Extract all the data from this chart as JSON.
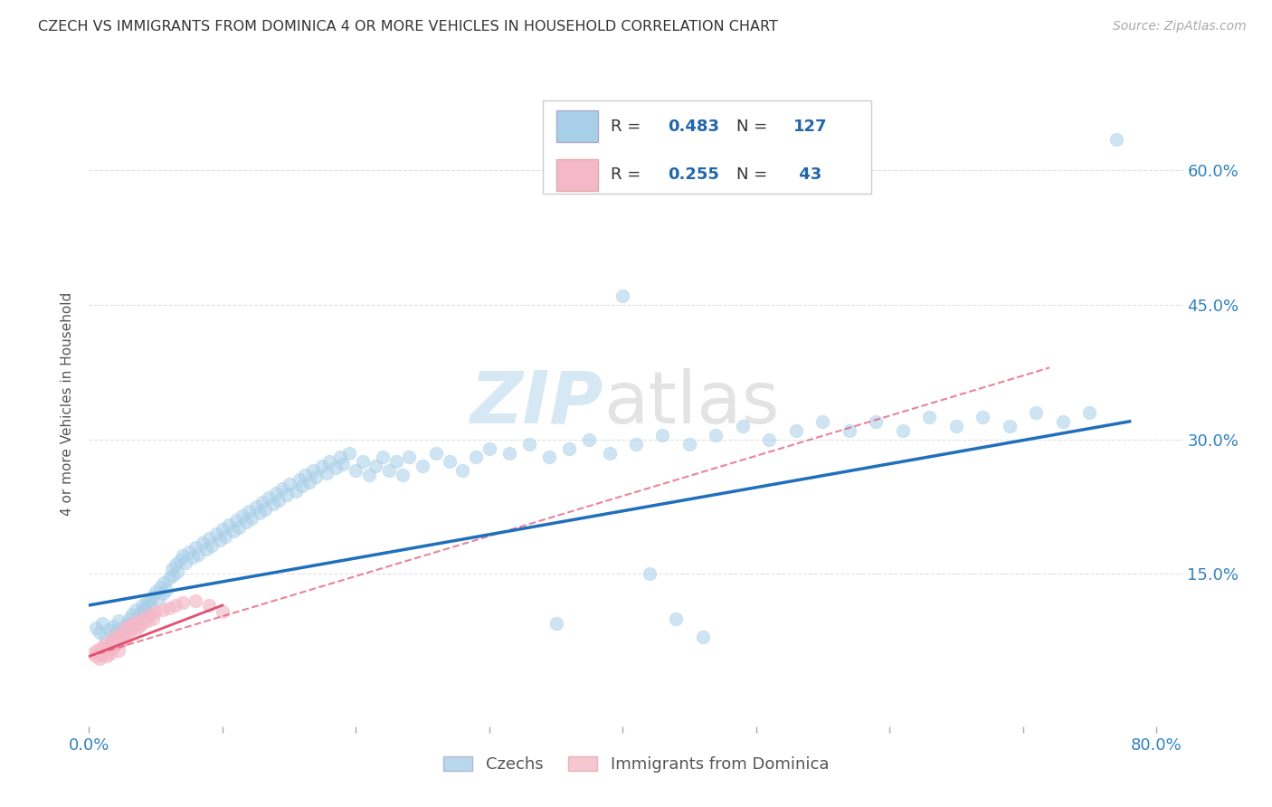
{
  "title": "CZECH VS IMMIGRANTS FROM DOMINICA 4 OR MORE VEHICLES IN HOUSEHOLD CORRELATION CHART",
  "source": "Source: ZipAtlas.com",
  "ylabel": "4 or more Vehicles in Household",
  "xlim": [
    0.0,
    0.82
  ],
  "ylim": [
    -0.02,
    0.7
  ],
  "ytick_positions": [
    0.15,
    0.3,
    0.45,
    0.6
  ],
  "ytick_labels": [
    "15.0%",
    "30.0%",
    "45.0%",
    "60.0%"
  ],
  "legend_label1": "Czechs",
  "legend_label2": "Immigrants from Dominica",
  "blue_color": "#a8cfe8",
  "pink_color": "#f4b8c8",
  "blue_line_color": "#1f6fba",
  "pink_line_color": "#e05070",
  "text_color": "#3182bd",
  "grid_color": "#dddddd",
  "czechs_x": [
    0.005,
    0.008,
    0.01,
    0.012,
    0.015,
    0.018,
    0.02,
    0.022,
    0.025,
    0.028,
    0.03,
    0.032,
    0.033,
    0.035,
    0.036,
    0.038,
    0.04,
    0.041,
    0.042,
    0.043,
    0.045,
    0.046,
    0.048,
    0.05,
    0.052,
    0.053,
    0.055,
    0.056,
    0.058,
    0.06,
    0.062,
    0.063,
    0.065,
    0.066,
    0.068,
    0.07,
    0.072,
    0.075,
    0.078,
    0.08,
    0.082,
    0.085,
    0.088,
    0.09,
    0.092,
    0.095,
    0.098,
    0.1,
    0.102,
    0.105,
    0.108,
    0.11,
    0.112,
    0.115,
    0.118,
    0.12,
    0.122,
    0.125,
    0.128,
    0.13,
    0.132,
    0.135,
    0.138,
    0.14,
    0.142,
    0.145,
    0.148,
    0.15,
    0.155,
    0.158,
    0.16,
    0.162,
    0.165,
    0.168,
    0.17,
    0.175,
    0.178,
    0.18,
    0.185,
    0.188,
    0.19,
    0.195,
    0.2,
    0.205,
    0.21,
    0.215,
    0.22,
    0.225,
    0.23,
    0.235,
    0.24,
    0.25,
    0.26,
    0.27,
    0.28,
    0.29,
    0.3,
    0.315,
    0.33,
    0.345,
    0.36,
    0.375,
    0.39,
    0.41,
    0.43,
    0.45,
    0.47,
    0.49,
    0.51,
    0.53,
    0.55,
    0.57,
    0.59,
    0.61,
    0.63,
    0.65,
    0.67,
    0.69,
    0.71,
    0.73,
    0.75,
    0.77,
    0.35,
    0.4,
    0.42,
    0.44,
    0.46
  ],
  "czechs_y": [
    0.09,
    0.085,
    0.095,
    0.08,
    0.088,
    0.092,
    0.085,
    0.098,
    0.09,
    0.095,
    0.1,
    0.105,
    0.095,
    0.11,
    0.098,
    0.105,
    0.115,
    0.108,
    0.112,
    0.118,
    0.12,
    0.115,
    0.125,
    0.13,
    0.122,
    0.135,
    0.128,
    0.14,
    0.132,
    0.145,
    0.155,
    0.148,
    0.16,
    0.152,
    0.165,
    0.17,
    0.162,
    0.175,
    0.168,
    0.18,
    0.172,
    0.185,
    0.178,
    0.19,
    0.182,
    0.195,
    0.188,
    0.2,
    0.192,
    0.205,
    0.198,
    0.21,
    0.202,
    0.215,
    0.208,
    0.22,
    0.212,
    0.225,
    0.218,
    0.23,
    0.222,
    0.235,
    0.228,
    0.24,
    0.232,
    0.245,
    0.238,
    0.25,
    0.242,
    0.255,
    0.248,
    0.26,
    0.252,
    0.265,
    0.258,
    0.27,
    0.262,
    0.275,
    0.268,
    0.28,
    0.272,
    0.285,
    0.265,
    0.275,
    0.26,
    0.27,
    0.28,
    0.265,
    0.275,
    0.26,
    0.28,
    0.27,
    0.285,
    0.275,
    0.265,
    0.28,
    0.29,
    0.285,
    0.295,
    0.28,
    0.29,
    0.3,
    0.285,
    0.295,
    0.305,
    0.295,
    0.305,
    0.315,
    0.3,
    0.31,
    0.32,
    0.31,
    0.32,
    0.31,
    0.325,
    0.315,
    0.325,
    0.315,
    0.33,
    0.32,
    0.33,
    0.635,
    0.095,
    0.46,
    0.15,
    0.1,
    0.08
  ],
  "dominica_x": [
    0.003,
    0.005,
    0.006,
    0.008,
    0.009,
    0.01,
    0.012,
    0.013,
    0.014,
    0.015,
    0.016,
    0.017,
    0.018,
    0.019,
    0.02,
    0.021,
    0.022,
    0.023,
    0.024,
    0.025,
    0.026,
    0.027,
    0.028,
    0.029,
    0.03,
    0.032,
    0.033,
    0.035,
    0.036,
    0.038,
    0.04,
    0.042,
    0.044,
    0.046,
    0.048,
    0.05,
    0.055,
    0.06,
    0.065,
    0.07,
    0.08,
    0.09,
    0.1
  ],
  "dominica_y": [
    0.062,
    0.058,
    0.065,
    0.055,
    0.068,
    0.06,
    0.072,
    0.058,
    0.065,
    0.07,
    0.062,
    0.075,
    0.068,
    0.08,
    0.072,
    0.078,
    0.065,
    0.082,
    0.075,
    0.085,
    0.078,
    0.088,
    0.08,
    0.092,
    0.085,
    0.09,
    0.095,
    0.088,
    0.098,
    0.092,
    0.095,
    0.102,
    0.098,
    0.105,
    0.1,
    0.108,
    0.11,
    0.112,
    0.115,
    0.118,
    0.12,
    0.115,
    0.108
  ]
}
